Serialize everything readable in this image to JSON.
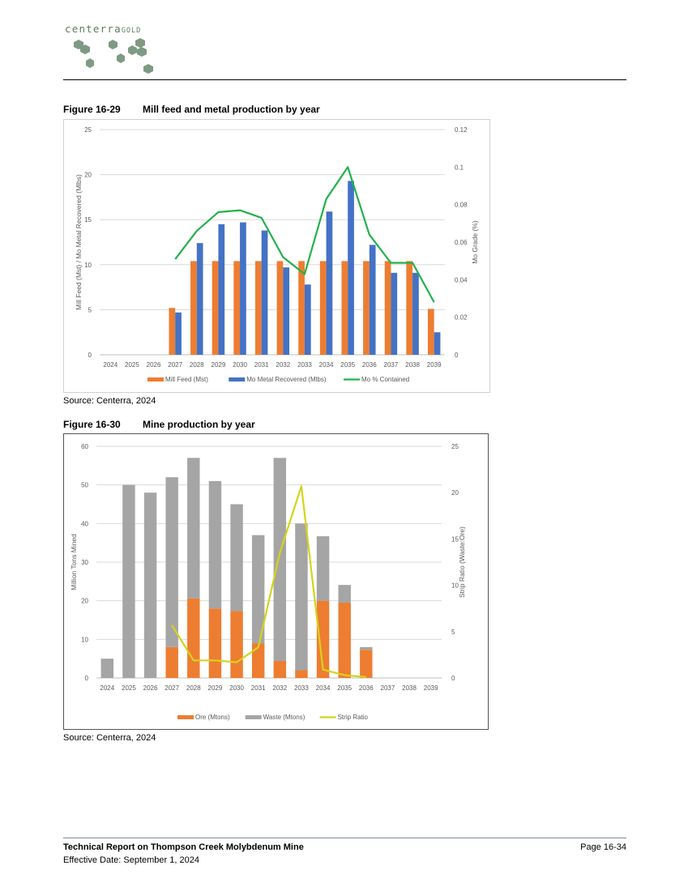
{
  "header": {
    "logo_text_main": "centerra",
    "logo_text_sub": "GOLD",
    "logo_color": "#5e7a64",
    "hex_color": "#7f9a83"
  },
  "figure1": {
    "number": "Figure 16-29",
    "title": "Mill feed and metal production by year",
    "source": "Source: Centerra, 2024"
  },
  "figure2": {
    "number": "Figure 16-30",
    "title": "Mine production by year",
    "source": "Source: Centerra, 2024"
  },
  "chart_data": [
    {
      "type": "bar",
      "categories": [
        "2024",
        "2025",
        "2026",
        "2027",
        "2028",
        "2029",
        "2030",
        "2031",
        "2032",
        "2033",
        "2034",
        "2035",
        "2036",
        "2037",
        "2038",
        "2039"
      ],
      "series": [
        {
          "name": "Mill Feed (Mst)",
          "kind": "bar",
          "axis": "left",
          "color": "#ed7d31",
          "values": [
            0,
            0,
            0,
            5.2,
            10.4,
            10.4,
            10.4,
            10.4,
            10.4,
            10.4,
            10.4,
            10.4,
            10.4,
            10.4,
            10.4,
            5.1
          ]
        },
        {
          "name": "Mo Metal Recovered (Mlbs)",
          "kind": "bar",
          "axis": "left",
          "color": "#4472c4",
          "values": [
            0,
            0,
            0,
            4.7,
            12.4,
            14.5,
            14.7,
            13.8,
            9.7,
            7.8,
            15.9,
            19.3,
            12.2,
            9.1,
            9.1,
            2.5
          ]
        },
        {
          "name": "Mo % Contained",
          "kind": "line",
          "axis": "right",
          "color": "#22b14c",
          "values": [
            null,
            null,
            null,
            0.051,
            0.066,
            0.076,
            0.077,
            0.073,
            0.052,
            0.043,
            0.083,
            0.1,
            0.064,
            0.049,
            0.049,
            0.028
          ]
        }
      ],
      "ylabel": "Mill Feed (Mst) / Mo Metal Recovered (Mlbs)",
      "y2label": "Mo Grade (%)",
      "ylim": [
        0,
        25
      ],
      "yticks": [
        0,
        5,
        10,
        15,
        20,
        25
      ],
      "y2lim": [
        0,
        0.12
      ],
      "y2ticks": [
        0,
        0.02,
        0.04,
        0.06,
        0.08,
        0.1,
        0.12
      ],
      "y2tick_labels": [
        "0",
        "0.02",
        "0.04",
        "0.06",
        "0.08",
        "0.1",
        "0.12"
      ],
      "stacked": false,
      "grid": true,
      "legend": "bottom"
    },
    {
      "type": "bar",
      "categories": [
        "2024",
        "2025",
        "2026",
        "2027",
        "2028",
        "2029",
        "2030",
        "2031",
        "2032",
        "2033",
        "2034",
        "2035",
        "2036",
        "2037",
        "2038",
        "2039"
      ],
      "series": [
        {
          "name": "Ore (Mtons)",
          "kind": "bar",
          "axis": "left",
          "color": "#ed7d31",
          "values": [
            0,
            0,
            0,
            8,
            20.6,
            18,
            17.3,
            9,
            4.4,
            2,
            20,
            19.5,
            7.3,
            0,
            0,
            0
          ]
        },
        {
          "name": "Waste (Mtons)",
          "kind": "bar",
          "axis": "left",
          "color": "#a5a5a5",
          "values": [
            5,
            50,
            48,
            44,
            36.4,
            33,
            27.7,
            28,
            52.6,
            38,
            16.7,
            4.6,
            0.7,
            0,
            0,
            0
          ]
        },
        {
          "name": "Strip Ratio",
          "kind": "line",
          "axis": "right",
          "color": "#d4d41c",
          "values": [
            null,
            null,
            null,
            5.7,
            1.9,
            1.9,
            1.7,
            3.3,
            13.5,
            20.7,
            0.9,
            0.3,
            0.1,
            null,
            null,
            null
          ]
        }
      ],
      "ylabel": "Million Tons Mined",
      "y2label": "Strip Ratio (Waste:Ore)",
      "ylim": [
        0,
        60
      ],
      "yticks": [
        0,
        10,
        20,
        30,
        40,
        50,
        60
      ],
      "y2lim": [
        0,
        25
      ],
      "y2ticks": [
        0,
        5,
        10,
        15,
        20,
        25
      ],
      "y2tick_labels": [
        "0",
        "5",
        "10",
        "15",
        "20",
        "25"
      ],
      "stacked": true,
      "grid": true,
      "legend": "bottom"
    }
  ],
  "footer": {
    "title": "Technical Report on Thompson Creek Molybdenum Mine",
    "date": "Effective Date: September 1, 2024",
    "page": "Page 16-34"
  }
}
